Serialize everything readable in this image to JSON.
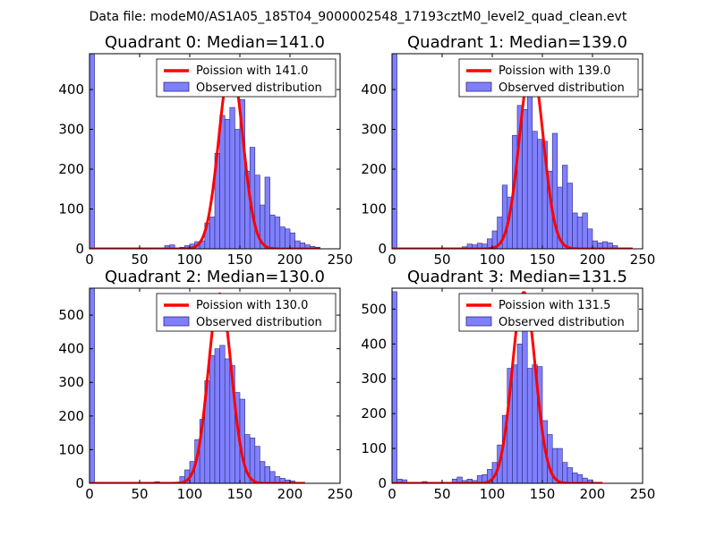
{
  "suptitle": "Data file: modeM0/AS1A05_185T04_9000002548_17193cztM0_level2_quad_clean.evt",
  "colors": {
    "bar_fill": "#8080ff",
    "bar_edge": "#2a2a7a",
    "line": "#ff0000"
  },
  "chart_data": [
    {
      "type": "bar",
      "title": "Quadrant 0: Median=141.0",
      "xlim": [
        0,
        250
      ],
      "ylim": [
        0,
        490
      ],
      "xticks": [
        0,
        50,
        100,
        150,
        200,
        250
      ],
      "yticks": [
        0,
        100,
        200,
        300,
        400
      ],
      "bin_width": 5,
      "legend": {
        "line": "Poission with 141.0",
        "bars": "Observed distribution"
      },
      "bars": [
        [
          0,
          490
        ],
        [
          75,
          8
        ],
        [
          80,
          10
        ],
        [
          90,
          4
        ],
        [
          95,
          8
        ],
        [
          100,
          12
        ],
        [
          105,
          18
        ],
        [
          110,
          20
        ],
        [
          115,
          65
        ],
        [
          120,
          80
        ],
        [
          125,
          240
        ],
        [
          130,
          335
        ],
        [
          135,
          325
        ],
        [
          140,
          355
        ],
        [
          145,
          300
        ],
        [
          150,
          375
        ],
        [
          155,
          195
        ],
        [
          160,
          255
        ],
        [
          165,
          185
        ],
        [
          170,
          110
        ],
        [
          175,
          180
        ],
        [
          180,
          85
        ],
        [
          185,
          80
        ],
        [
          190,
          55
        ],
        [
          195,
          50
        ],
        [
          200,
          40
        ],
        [
          205,
          20
        ],
        [
          210,
          15
        ],
        [
          215,
          10
        ],
        [
          220,
          6
        ],
        [
          225,
          4
        ]
      ],
      "poisson_mean": 141.0,
      "poisson_peak": 465,
      "poisson_x": [
        0,
        230
      ]
    },
    {
      "type": "bar",
      "title": "Quadrant 1: Median=139.0",
      "xlim": [
        0,
        250
      ],
      "ylim": [
        0,
        490
      ],
      "xticks": [
        0,
        50,
        100,
        150,
        200,
        250
      ],
      "yticks": [
        0,
        100,
        200,
        300,
        400
      ],
      "bin_width": 5,
      "legend": {
        "line": "Poission with 139.0",
        "bars": "Observed distribution"
      },
      "bars": [
        [
          0,
          490
        ],
        [
          70,
          5
        ],
        [
          75,
          12
        ],
        [
          80,
          10
        ],
        [
          85,
          14
        ],
        [
          90,
          12
        ],
        [
          95,
          25
        ],
        [
          100,
          45
        ],
        [
          105,
          80
        ],
        [
          110,
          160
        ],
        [
          115,
          130
        ],
        [
          120,
          285
        ],
        [
          125,
          360
        ],
        [
          130,
          350
        ],
        [
          135,
          395
        ],
        [
          140,
          295
        ],
        [
          145,
          275
        ],
        [
          150,
          270
        ],
        [
          155,
          195
        ],
        [
          160,
          290
        ],
        [
          165,
          155
        ],
        [
          170,
          210
        ],
        [
          175,
          165
        ],
        [
          180,
          90
        ],
        [
          185,
          80
        ],
        [
          190,
          90
        ],
        [
          195,
          50
        ],
        [
          200,
          20
        ],
        [
          205,
          15
        ],
        [
          210,
          18
        ],
        [
          215,
          15
        ],
        [
          220,
          8
        ]
      ],
      "poisson_mean": 139.0,
      "poisson_peak": 465,
      "poisson_x": [
        0,
        240
      ]
    },
    {
      "type": "bar",
      "title": "Quadrant 2: Median=130.0",
      "xlim": [
        0,
        250
      ],
      "ylim": [
        0,
        580
      ],
      "xticks": [
        0,
        50,
        100,
        150,
        200,
        250
      ],
      "yticks": [
        0,
        100,
        200,
        300,
        400,
        500
      ],
      "bin_width": 5,
      "legend": {
        "line": "Poission with 130.0",
        "bars": "Observed distribution"
      },
      "bars": [
        [
          0,
          580
        ],
        [
          65,
          5
        ],
        [
          90,
          20
        ],
        [
          95,
          40
        ],
        [
          100,
          65
        ],
        [
          105,
          130
        ],
        [
          110,
          190
        ],
        [
          115,
          305
        ],
        [
          120,
          380
        ],
        [
          125,
          400
        ],
        [
          130,
          410
        ],
        [
          135,
          370
        ],
        [
          140,
          350
        ],
        [
          145,
          270
        ],
        [
          150,
          250
        ],
        [
          155,
          145
        ],
        [
          160,
          135
        ],
        [
          165,
          110
        ],
        [
          170,
          65
        ],
        [
          175,
          50
        ],
        [
          180,
          35
        ],
        [
          185,
          20
        ],
        [
          190,
          15
        ],
        [
          195,
          10
        ],
        [
          200,
          7
        ]
      ],
      "poisson_mean": 130.0,
      "poisson_peak": 563,
      "poisson_x": [
        0,
        215
      ]
    },
    {
      "type": "bar",
      "title": "Quadrant 3: Median=131.5",
      "xlim": [
        0,
        250
      ],
      "ylim": [
        0,
        560
      ],
      "xticks": [
        0,
        50,
        100,
        150,
        200,
        250
      ],
      "yticks": [
        0,
        100,
        200,
        300,
        400,
        500
      ],
      "bin_width": 5,
      "legend": {
        "line": "Poission with 131.5",
        "bars": "Observed distribution"
      },
      "bars": [
        [
          0,
          550
        ],
        [
          5,
          12
        ],
        [
          10,
          10
        ],
        [
          30,
          5
        ],
        [
          60,
          12
        ],
        [
          65,
          18
        ],
        [
          70,
          8
        ],
        [
          75,
          12
        ],
        [
          80,
          8
        ],
        [
          85,
          22
        ],
        [
          90,
          25
        ],
        [
          95,
          40
        ],
        [
          100,
          60
        ],
        [
          105,
          110
        ],
        [
          110,
          195
        ],
        [
          115,
          330
        ],
        [
          120,
          340
        ],
        [
          125,
          400
        ],
        [
          130,
          470
        ],
        [
          135,
          330
        ],
        [
          140,
          340
        ],
        [
          145,
          335
        ],
        [
          150,
          180
        ],
        [
          155,
          140
        ],
        [
          160,
          100
        ],
        [
          165,
          100
        ],
        [
          170,
          60
        ],
        [
          175,
          45
        ],
        [
          180,
          30
        ],
        [
          185,
          25
        ],
        [
          190,
          15
        ],
        [
          195,
          10
        ]
      ],
      "poisson_mean": 131.5,
      "poisson_peak": 548,
      "poisson_x": [
        0,
        210
      ]
    }
  ]
}
